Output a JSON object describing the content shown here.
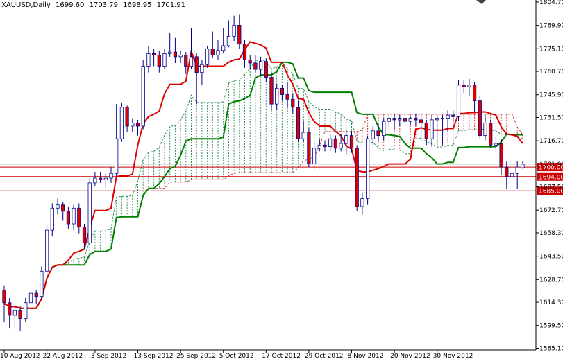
{
  "header": {
    "symbol": "XAUUSD,Daily",
    "open": "1699.60",
    "high": "1703.79",
    "low": "1698.95",
    "close": "1701.91"
  },
  "colors": {
    "bull_body": "#ffffff",
    "bear_body": "#dd0000",
    "wick": "#000088",
    "tenkan": "#dd0000",
    "kijun": "#008000",
    "cloud_up": "#2e8b57",
    "cloud_down": "#cc3333",
    "hline": "#cc0000"
  },
  "chart_data": {
    "type": "candlestick",
    "ylim": [
      1584,
      1806
    ],
    "y_ticks": [
      "1804.70",
      "1789.90",
      "1775.10",
      "1760.70",
      "1745.90",
      "1731.50",
      "1716.70",
      "1701.91",
      "1687.50",
      "1672.70",
      "1658.30",
      "1643.50",
      "1628.70",
      "1614.30",
      "1599.50",
      "1585.10"
    ],
    "x_ticks": [
      {
        "i": 0,
        "label": "10 Aug 2012"
      },
      {
        "i": 8,
        "label": "22 Aug 2012"
      },
      {
        "i": 17,
        "label": "3 Sep 2012"
      },
      {
        "i": 25,
        "label": "13 Sep 2012"
      },
      {
        "i": 33,
        "label": "25 Sep 2012"
      },
      {
        "i": 41,
        "label": "5 Oct 2012"
      },
      {
        "i": 49,
        "label": "17 Oct 2012"
      },
      {
        "i": 57,
        "label": "29 Oct 2012"
      },
      {
        "i": 65,
        "label": "8 Nov 2012"
      },
      {
        "i": 73,
        "label": "20 Nov 2012"
      },
      {
        "i": 81,
        "label": "30 Nov 2012"
      }
    ],
    "candles": [
      [
        1622,
        1614,
        1625,
        1602
      ],
      [
        1614,
        1606,
        1617,
        1598
      ],
      [
        1606,
        1609,
        1611,
        1598
      ],
      [
        1609,
        1604,
        1612,
        1596
      ],
      [
        1604,
        1614,
        1617,
        1602
      ],
      [
        1614,
        1620,
        1624,
        1611
      ],
      [
        1620,
        1618,
        1622,
        1613
      ],
      [
        1618,
        1634,
        1637,
        1616
      ],
      [
        1634,
        1660,
        1663,
        1630
      ],
      [
        1660,
        1674,
        1677,
        1656
      ],
      [
        1674,
        1676,
        1680,
        1670
      ],
      [
        1676,
        1672,
        1678,
        1666
      ],
      [
        1672,
        1664,
        1675,
        1661
      ],
      [
        1664,
        1674,
        1676,
        1660
      ],
      [
        1674,
        1662,
        1677,
        1658
      ],
      [
        1662,
        1652,
        1664,
        1648
      ],
      [
        1652,
        1690,
        1693,
        1650
      ],
      [
        1690,
        1693,
        1697,
        1688
      ],
      [
        1693,
        1692,
        1697,
        1690
      ],
      [
        1692,
        1693,
        1696,
        1687
      ],
      [
        1693,
        1696,
        1700,
        1690
      ],
      [
        1696,
        1718,
        1740,
        1694
      ],
      [
        1718,
        1738,
        1741,
        1716
      ],
      [
        1738,
        1726,
        1739,
        1722
      ],
      [
        1726,
        1728,
        1731,
        1722
      ],
      [
        1728,
        1726,
        1730,
        1720
      ],
      [
        1726,
        1764,
        1768,
        1724
      ],
      [
        1764,
        1772,
        1777,
        1760
      ],
      [
        1772,
        1771,
        1775,
        1764
      ],
      [
        1771,
        1764,
        1774,
        1760
      ],
      [
        1764,
        1772,
        1775,
        1762
      ],
      [
        1772,
        1773,
        1785,
        1770
      ],
      [
        1773,
        1770,
        1782,
        1766
      ],
      [
        1770,
        1771,
        1774,
        1766
      ],
      [
        1771,
        1764,
        1773,
        1759
      ],
      [
        1764,
        1770,
        1788,
        1762
      ],
      [
        1770,
        1760,
        1772,
        1740
      ],
      [
        1760,
        1765,
        1768,
        1752
      ],
      [
        1765,
        1775,
        1777,
        1763
      ],
      [
        1775,
        1771,
        1786,
        1769
      ],
      [
        1771,
        1774,
        1781,
        1768
      ],
      [
        1774,
        1777,
        1788,
        1772
      ],
      [
        1777,
        1783,
        1793,
        1776
      ],
      [
        1783,
        1790,
        1796,
        1780
      ],
      [
        1790,
        1778,
        1797,
        1775
      ],
      [
        1778,
        1768,
        1781,
        1763
      ],
      [
        1768,
        1766,
        1771,
        1762
      ],
      [
        1766,
        1762,
        1771,
        1760
      ],
      [
        1762,
        1767,
        1770,
        1758
      ],
      [
        1767,
        1757,
        1769,
        1754
      ],
      [
        1757,
        1740,
        1760,
        1736
      ],
      [
        1740,
        1750,
        1753,
        1736
      ],
      [
        1750,
        1746,
        1752,
        1742
      ],
      [
        1746,
        1743,
        1754,
        1738
      ],
      [
        1743,
        1738,
        1747,
        1734
      ],
      [
        1738,
        1718,
        1742,
        1716
      ],
      [
        1718,
        1722,
        1729,
        1716
      ],
      [
        1722,
        1702,
        1725,
        1700
      ],
      [
        1702,
        1712,
        1716,
        1698
      ],
      [
        1712,
        1714,
        1718,
        1710
      ],
      [
        1714,
        1713,
        1717,
        1710
      ],
      [
        1713,
        1718,
        1721,
        1710
      ],
      [
        1718,
        1712,
        1720,
        1709
      ],
      [
        1712,
        1715,
        1721,
        1710
      ],
      [
        1715,
        1720,
        1724,
        1708
      ],
      [
        1720,
        1712,
        1723,
        1709
      ],
      [
        1712,
        1675,
        1714,
        1672
      ],
      [
        1675,
        1680,
        1684,
        1670
      ],
      [
        1680,
        1718,
        1720,
        1676
      ],
      [
        1718,
        1723,
        1726,
        1714
      ],
      [
        1723,
        1720,
        1728,
        1716
      ],
      [
        1720,
        1729,
        1731,
        1717
      ],
      [
        1729,
        1731,
        1734,
        1725
      ],
      [
        1731,
        1730,
        1734,
        1724
      ],
      [
        1730,
        1731,
        1733,
        1726
      ],
      [
        1731,
        1729,
        1732,
        1720
      ],
      [
        1729,
        1731,
        1732,
        1727
      ],
      [
        1731,
        1730,
        1734,
        1726
      ],
      [
        1730,
        1728,
        1734,
        1716
      ],
      [
        1728,
        1718,
        1730,
        1714
      ],
      [
        1718,
        1730,
        1733,
        1713
      ],
      [
        1730,
        1731,
        1733,
        1714
      ],
      [
        1731,
        1731,
        1733,
        1714
      ],
      [
        1731,
        1733,
        1736,
        1722
      ],
      [
        1733,
        1732,
        1736,
        1728
      ],
      [
        1732,
        1752,
        1755,
        1729
      ],
      [
        1752,
        1751,
        1755,
        1747
      ],
      [
        1751,
        1752,
        1756,
        1745
      ],
      [
        1752,
        1742,
        1754,
        1735
      ],
      [
        1742,
        1720,
        1745,
        1718
      ],
      [
        1720,
        1728,
        1733,
        1717
      ],
      [
        1728,
        1714,
        1730,
        1712
      ],
      [
        1714,
        1715,
        1719,
        1710
      ],
      [
        1715,
        1700,
        1718,
        1695
      ],
      [
        1700,
        1694,
        1704,
        1686
      ],
      [
        1694,
        1696,
        1701,
        1685
      ],
      [
        1696,
        1700,
        1704,
        1686
      ],
      [
        1699.6,
        1701.91,
        1703.79,
        1698.95
      ]
    ],
    "hlines": [
      {
        "value": 1700.0,
        "label": "1700.00",
        "color": "#cc0000"
      },
      {
        "value": 1694.0,
        "label": "1694.00",
        "color": "#cc0000"
      },
      {
        "value": 1685.0,
        "label": "1685.00",
        "color": "#cc0000"
      }
    ],
    "current_price": {
      "value": 1701.91,
      "label": "1701.91"
    },
    "cloud_start_index": 26,
    "cloud_offset": 26
  }
}
